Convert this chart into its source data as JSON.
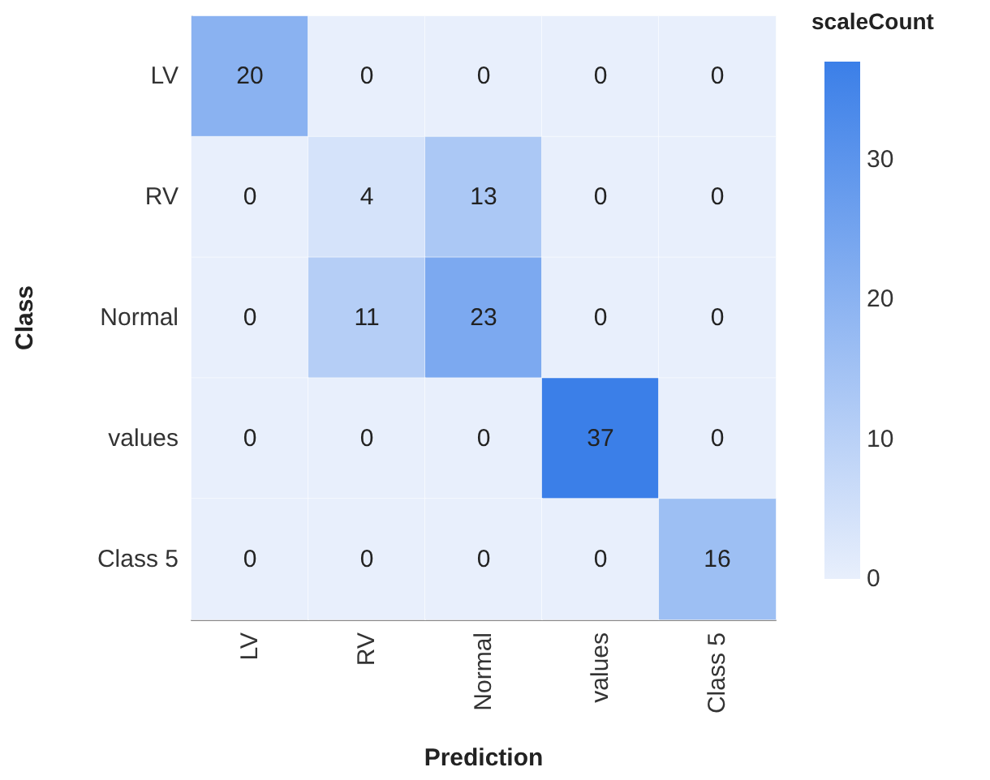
{
  "chart_data": {
    "type": "heatmap",
    "xlabel": "Prediction",
    "ylabel": "Class",
    "clabel": "scaleCount",
    "categories": [
      "LV",
      "RV",
      "Normal",
      "values",
      "Class 5"
    ],
    "y_categories": [
      "LV",
      "RV",
      "Normal",
      "values",
      "Class 5"
    ],
    "cells": [
      [
        20,
        0,
        0,
        0,
        0
      ],
      [
        0,
        4,
        13,
        0,
        0
      ],
      [
        0,
        11,
        23,
        0,
        0
      ],
      [
        0,
        0,
        0,
        37,
        0
      ],
      [
        0,
        0,
        0,
        0,
        16
      ]
    ],
    "clim": [
      0,
      37
    ],
    "cticks": [
      0,
      10,
      20,
      30
    ],
    "data_labels": true
  }
}
